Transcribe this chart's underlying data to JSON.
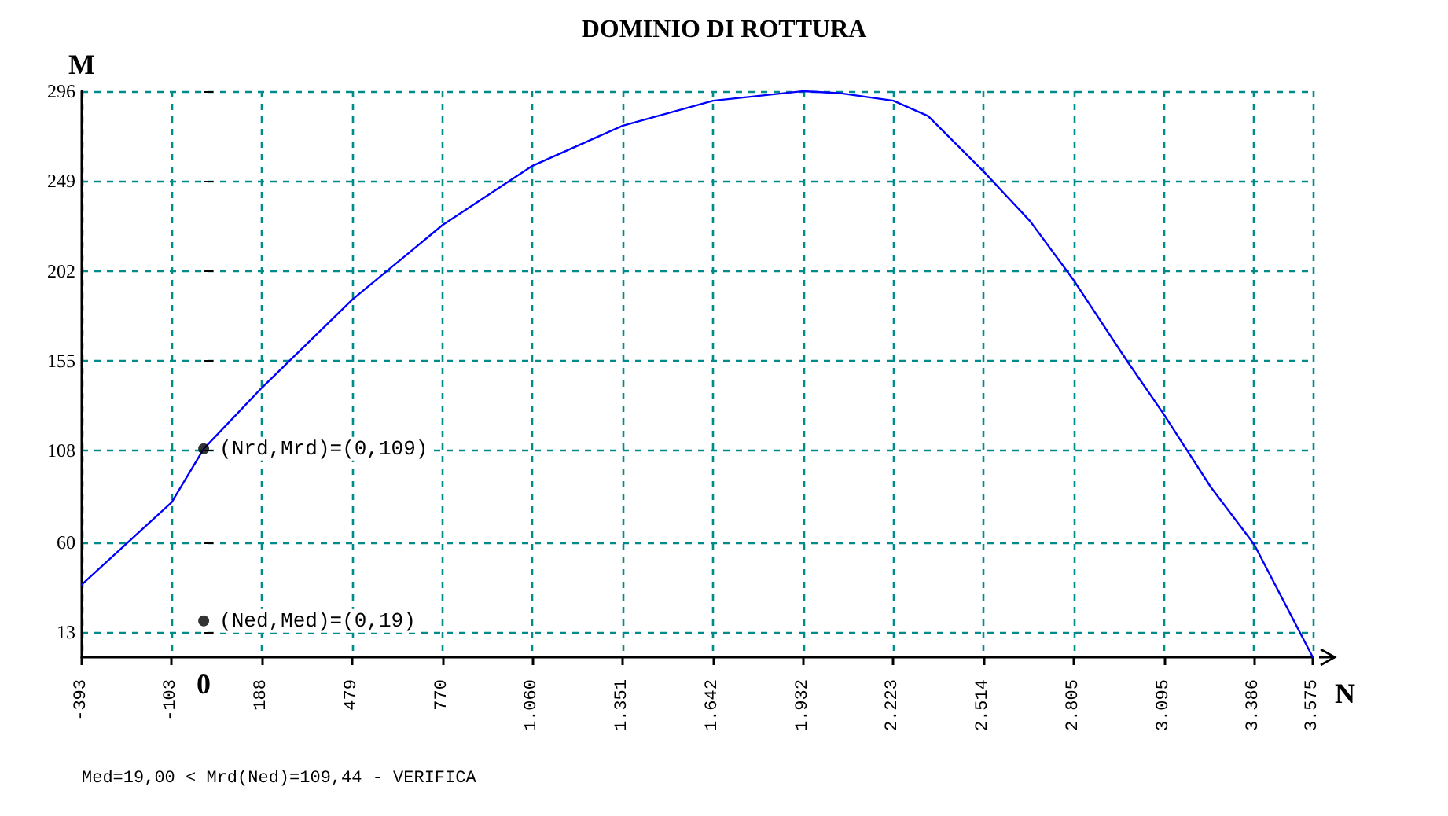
{
  "chart_data": {
    "type": "line",
    "title": "DOMINIO DI ROTTURA",
    "xlabel": "N",
    "ylabel": "M",
    "series": [
      {
        "color": "#0000ff",
        "marker": "none",
        "x": [
          -393,
          -103,
          0,
          188,
          479,
          770,
          1060,
          1351,
          1642,
          1932,
          2048,
          2223,
          2335,
          2514,
          2664,
          2805,
          2976,
          3095,
          3246,
          3386,
          3575
        ],
        "values": [
          38,
          81,
          109,
          141,
          187,
          226,
          257,
          278,
          291,
          296,
          295,
          291,
          283,
          254,
          228,
          197,
          155,
          127,
          89,
          59,
          0
        ]
      },
      {
        "type": "scatter",
        "marker": "circle",
        "color": "#000000",
        "x": [
          0,
          0
        ],
        "values": [
          109,
          19
        ]
      }
    ],
    "xlim": [
      -393,
      3575
    ],
    "ylim": [
      0,
      296
    ],
    "xticks": [
      -393,
      -103,
      188,
      479,
      770,
      {
        "value": 1060,
        "label": "1.060"
      },
      {
        "value": 1351,
        "label": "1.351"
      },
      {
        "value": 1642,
        "label": "1.642"
      },
      {
        "value": 1932,
        "label": "1.932"
      },
      {
        "value": 2223,
        "label": "2.223"
      },
      {
        "value": 2514,
        "label": "2.514"
      },
      {
        "value": 2805,
        "label": "2.805"
      },
      {
        "value": 3095,
        "label": "3.095"
      },
      {
        "value": 3386,
        "label": "3.386"
      },
      {
        "value": 3575,
        "label": "3.575"
      }
    ],
    "yticks": [
      13,
      60,
      108,
      155,
      202,
      249,
      296
    ],
    "grid": true,
    "line_style": "solid",
    "annotations": [
      {
        "text": "(Nrd,Mrd)=(0,109)",
        "x": 0,
        "y": 109
      },
      {
        "text": "(Ned,Med)=(0,19)",
        "x": 0,
        "y": 19
      },
      "0",
      "Med=19,00 < Mrd(Ned)=109,44 - VERIFICA"
    ]
  }
}
